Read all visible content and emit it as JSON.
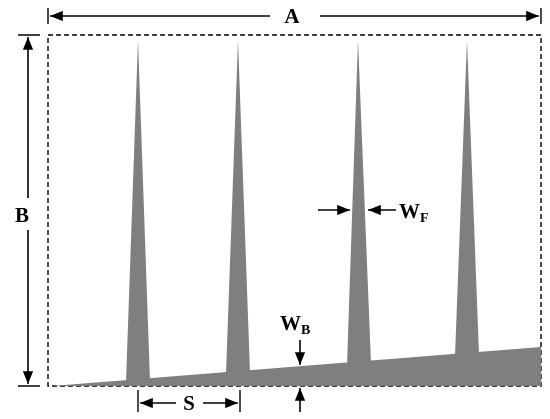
{
  "labels": {
    "a": "A",
    "b": "B",
    "s": "S",
    "wf": {
      "base": "W",
      "sub": "F"
    },
    "wb": {
      "base": "W",
      "sub": "B"
    }
  }
}
